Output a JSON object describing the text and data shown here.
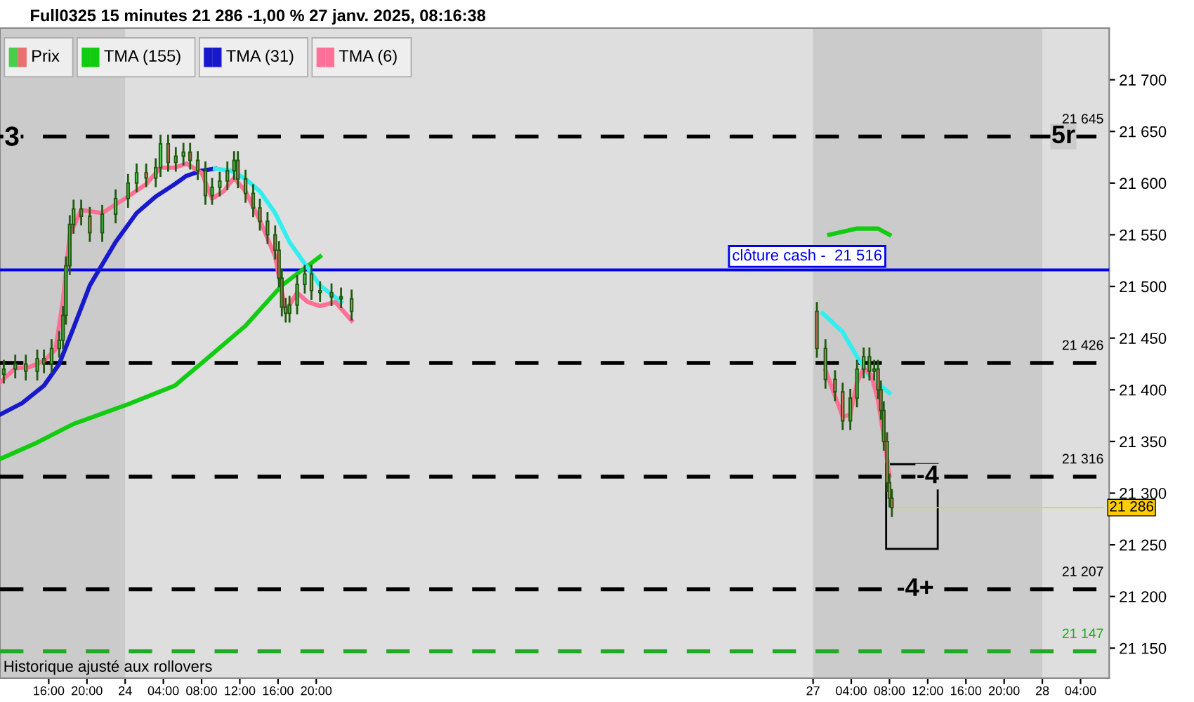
{
  "chart_data": {
    "type": "candlestick",
    "title": "Full0325 15 minutes 21 286 -1,00 % 27 janv. 2025, 08:16:38",
    "xlim": [
      "2025-01-23T10:54",
      "2025-01-28T07:00"
    ],
    "xticks": [
      {
        "value": "2025-01-23T16:00",
        "label": "16:00"
      },
      {
        "value": "2025-01-23T20:00",
        "label": "20:00"
      },
      {
        "value": "2025-01-24T00:00",
        "label": "24"
      },
      {
        "value": "2025-01-24T04:00",
        "label": "04:00"
      },
      {
        "value": "2025-01-24T08:00",
        "label": "08:00"
      },
      {
        "value": "2025-01-24T12:00",
        "label": "12:00"
      },
      {
        "value": "2025-01-24T16:00",
        "label": "16:00"
      },
      {
        "value": "2025-01-24T20:00",
        "label": "20:00"
      },
      {
        "value": "2025-01-27T00:00",
        "label": "27"
      },
      {
        "value": "2025-01-27T04:00",
        "label": "04:00"
      },
      {
        "value": "2025-01-27T08:00",
        "label": "08:00"
      },
      {
        "value": "2025-01-27T12:00",
        "label": "12:00"
      },
      {
        "value": "2025-01-27T16:00",
        "label": "16:00"
      },
      {
        "value": "2025-01-27T20:00",
        "label": "20:00"
      },
      {
        "value": "2025-01-28T00:00",
        "label": "28"
      },
      {
        "value": "2025-01-28T04:00",
        "label": "04:00"
      }
    ],
    "ylim": [
      21121,
      21750
    ],
    "yticks": [
      {
        "value": 21150,
        "label": "21 150"
      },
      {
        "value": 21200,
        "label": "21 200"
      },
      {
        "value": 21250,
        "label": "21 250"
      },
      {
        "value": 21300,
        "label": "21 300"
      },
      {
        "value": 21350,
        "label": "21 350"
      },
      {
        "value": 21400,
        "label": "21 400"
      },
      {
        "value": 21450,
        "label": "21 450"
      },
      {
        "value": 21500,
        "label": "21 500"
      },
      {
        "value": 21550,
        "label": "21 550"
      },
      {
        "value": 21600,
        "label": "21 600"
      },
      {
        "value": 21650,
        "label": "21 650"
      },
      {
        "value": 21700,
        "label": "21 700"
      }
    ],
    "legend": "top left",
    "series": [
      {
        "name": "Prix",
        "color": "#1e5a0f",
        "x": [
          "2025-01-23T11:18",
          "2025-01-23T12:30",
          "2025-01-23T13:36",
          "2025-01-23T14:48",
          "2025-01-23T15:30",
          "2025-01-23T16:18",
          "2025-01-23T17:06",
          "2025-01-23T17:30",
          "2025-01-23T17:48",
          "2025-01-23T18:12",
          "2025-01-23T18:36",
          "2025-01-23T19:24",
          "2025-01-23T20:18",
          "2025-01-23T21:36",
          "2025-01-23T23:00",
          "2025-01-24T00:18",
          "2025-01-24T01:12",
          "2025-01-24T02:12",
          "2025-01-24T03:12",
          "2025-01-24T03:42",
          "2025-01-24T04:30",
          "2025-01-24T05:18",
          "2025-01-24T06:06",
          "2025-01-24T06:48",
          "2025-01-24T07:36",
          "2025-01-24T08:24",
          "2025-01-24T09:06",
          "2025-01-24T09:54",
          "2025-01-24T10:42",
          "2025-01-24T11:24",
          "2025-01-24T11:48",
          "2025-01-24T12:36",
          "2025-01-24T13:24",
          "2025-01-24T14:06",
          "2025-01-24T14:54",
          "2025-01-24T15:42",
          "2025-01-24T16:06",
          "2025-01-24T16:24",
          "2025-01-24T16:48",
          "2025-01-24T17:12",
          "2025-01-24T18:00",
          "2025-01-24T18:48",
          "2025-01-24T19:30",
          "2025-01-24T20:24",
          "2025-01-24T21:36",
          "2025-01-24T22:36",
          "2025-01-24T23:42",
          "2025-01-27T00:24",
          "2025-01-27T01:18",
          "2025-01-27T02:18",
          "2025-01-27T03:06",
          "2025-01-27T03:54",
          "2025-01-27T04:36",
          "2025-01-27T05:18",
          "2025-01-27T05:54",
          "2025-01-27T06:24",
          "2025-01-27T06:48",
          "2025-01-27T07:06",
          "2025-01-27T07:24",
          "2025-01-27T07:45",
          "2025-01-27T08:00",
          "2025-01-27T08:15"
        ],
        "ohlc": [
          [
            21415,
            21428,
            21407,
            21420
          ],
          [
            21420,
            21433,
            21412,
            21425
          ],
          [
            21425,
            21433,
            21410,
            21418
          ],
          [
            21418,
            21438,
            21410,
            21430
          ],
          [
            21430,
            21438,
            21417,
            21425
          ],
          [
            21425,
            21448,
            21417,
            21440
          ],
          [
            21440,
            21456,
            21432,
            21448
          ],
          [
            21448,
            21480,
            21440,
            21472
          ],
          [
            21472,
            21528,
            21464,
            21520
          ],
          [
            21520,
            21568,
            21512,
            21560
          ],
          [
            21560,
            21583,
            21552,
            21575
          ],
          [
            21575,
            21583,
            21560,
            21568
          ],
          [
            21568,
            21576,
            21544,
            21552
          ],
          [
            21552,
            21578,
            21544,
            21570
          ],
          [
            21570,
            21593,
            21562,
            21585
          ],
          [
            21585,
            21608,
            21577,
            21600
          ],
          [
            21600,
            21618,
            21592,
            21610
          ],
          [
            21610,
            21618,
            21597,
            21605
          ],
          [
            21605,
            21623,
            21597,
            21615
          ],
          [
            21615,
            21646,
            21607,
            21638
          ],
          [
            21638,
            21646,
            21612,
            21620
          ],
          [
            21620,
            21634,
            21612,
            21626
          ],
          [
            21626,
            21638,
            21618,
            21630
          ],
          [
            21630,
            21638,
            21614,
            21622
          ],
          [
            21622,
            21630,
            21604,
            21612
          ],
          [
            21612,
            21620,
            21580,
            21588
          ],
          [
            21588,
            21604,
            21580,
            21596
          ],
          [
            21596,
            21610,
            21588,
            21602
          ],
          [
            21602,
            21620,
            21594,
            21612
          ],
          [
            21612,
            21630,
            21604,
            21622
          ],
          [
            21622,
            21630,
            21596,
            21604
          ],
          [
            21604,
            21612,
            21582,
            21590
          ],
          [
            21590,
            21598,
            21568,
            21576
          ],
          [
            21576,
            21584,
            21555,
            21563
          ],
          [
            21563,
            21571,
            21542,
            21550
          ],
          [
            21550,
            21558,
            21527,
            21535
          ],
          [
            21535,
            21543,
            21500,
            21508
          ],
          [
            21508,
            21516,
            21472,
            21480
          ],
          [
            21480,
            21488,
            21466,
            21474
          ],
          [
            21474,
            21490,
            21466,
            21482
          ],
          [
            21482,
            21510,
            21474,
            21502
          ],
          [
            21502,
            21520,
            21494,
            21512
          ],
          [
            21512,
            21520,
            21488,
            21496
          ],
          [
            21496,
            21504,
            21486,
            21494
          ],
          [
            21494,
            21502,
            21482,
            21490
          ],
          [
            21490,
            21498,
            21480,
            21488
          ],
          [
            21488,
            21496,
            21468,
            21476
          ],
          [
            21476,
            21484,
            21432,
            21440
          ],
          [
            21440,
            21448,
            21402,
            21410
          ],
          [
            21410,
            21418,
            21390,
            21398
          ],
          [
            21398,
            21406,
            21362,
            21370
          ],
          [
            21370,
            21400,
            21362,
            21392
          ],
          [
            21392,
            21428,
            21384,
            21420
          ],
          [
            21420,
            21440,
            21412,
            21432
          ],
          [
            21432,
            21440,
            21410,
            21418
          ],
          [
            21418,
            21428,
            21410,
            21420
          ],
          [
            21420,
            21428,
            21392,
            21400
          ],
          [
            21400,
            21408,
            21372,
            21380
          ],
          [
            21380,
            21388,
            21342,
            21350
          ],
          [
            21350,
            21358,
            21302,
            21310
          ],
          [
            21310,
            21318,
            21287,
            21295
          ],
          [
            21295,
            21303,
            21278,
            21286
          ]
        ],
        "colors": [
          "#4ccc4c",
          "#4ccc4c",
          "#e87070",
          "#4ccc4c",
          "#e87070",
          "#4ccc4c",
          "#4ccc4c",
          "#4ccc4c",
          "#4ccc4c",
          "#4ccc4c",
          "#4ccc4c",
          "#e87070",
          "#e87070",
          "#4ccc4c",
          "#4ccc4c",
          "#4ccc4c",
          "#4ccc4c",
          "#e87070",
          "#4ccc4c",
          "#4ccc4c",
          "#e87070",
          "#4ccc4c",
          "#4ccc4c",
          "#e87070",
          "#e87070",
          "#e87070",
          "#4ccc4c",
          "#4ccc4c",
          "#4ccc4c",
          "#4ccc4c",
          "#e87070",
          "#e87070",
          "#e87070",
          "#e87070",
          "#e87070",
          "#e87070",
          "#e87070",
          "#e87070",
          "#e87070",
          "#4ccc4c",
          "#4ccc4c",
          "#4ccc4c",
          "#e87070",
          "#e87070",
          "#e87070",
          "#e87070",
          "#e87070",
          "#e87070",
          "#e87070",
          "#e87070",
          "#e87070",
          "#4ccc4c",
          "#4ccc4c",
          "#4ccc4c",
          "#e87070",
          "#4ccc4c",
          "#e87070",
          "#e87070",
          "#e87070",
          "#e87070",
          "#e87070",
          "#e87070"
        ]
      },
      {
        "name": "TMA (155)",
        "type": "line",
        "color": "#11cc11",
        "x": [
          "2025-01-23T10:54",
          "2025-01-23T14:48",
          "2025-01-23T18:36",
          "2025-01-24T00:18",
          "2025-01-24T05:12",
          "2025-01-24T08:48",
          "2025-01-24T12:36",
          "2025-01-24T16:24",
          "2025-01-24T20:24",
          "2025-01-27T01:42",
          "2025-01-27T04:36",
          "2025-01-27T06:48",
          "2025-01-27T08:00"
        ],
        "values": [
          21333,
          21349,
          21367,
          21386,
          21404,
          21432,
          21462,
          21501,
          21529,
          21550,
          21556,
          21556,
          21550
        ]
      },
      {
        "name": "TMA (31)",
        "type": "line",
        "color": "#1818cc",
        "x": [
          "2025-01-23T10:54",
          "2025-01-23T13:12",
          "2025-01-23T15:30",
          "2025-01-23T17:06",
          "2025-01-23T18:36",
          "2025-01-23T20:18",
          "2025-01-23T23:00",
          "2025-01-24T01:12",
          "2025-01-24T03:12",
          "2025-01-24T05:12",
          "2025-01-24T06:24",
          "2025-01-24T08:00",
          "2025-01-24T09:24"
        ],
        "values": [
          21376,
          21387,
          21404,
          21425,
          21460,
          21501,
          21543,
          21571,
          21587,
          21599,
          21607,
          21612,
          21614
        ]
      },
      {
        "type": "line",
        "color": "#33eeee",
        "x": [
          "2025-01-24T09:24",
          "2025-01-24T11:06",
          "2025-01-24T12:36",
          "2025-01-24T14:06",
          "2025-01-24T15:42",
          "2025-01-24T17:12",
          "2025-01-24T18:48",
          "2025-01-24T20:24",
          "2025-01-24T22:36",
          "2025-01-27T01:00",
          "2025-01-27T03:06",
          "2025-01-27T04:36",
          "2025-01-27T06:06",
          "2025-01-27T08:00"
        ],
        "values": [
          21614,
          21612,
          21604,
          21592,
          21571,
          21543,
          21522,
          21501,
          21485,
          21474,
          21456,
          21432,
          21411,
          21397
        ]
      },
      {
        "name": "TMA (6)",
        "type": "line",
        "color": "#ff7096",
        "x": [
          "2025-01-23T10:54",
          "2025-01-23T12:30",
          "2025-01-23T14:00",
          "2025-01-23T15:30",
          "2025-01-23T16:42",
          "2025-01-23T17:30",
          "2025-01-23T18:12",
          "2025-01-23T19:24",
          "2025-01-23T21:36",
          "2025-01-24T00:18",
          "2025-01-24T02:12",
          "2025-01-24T03:42",
          "2025-01-24T05:12",
          "2025-01-24T06:24",
          "2025-01-24T08:00",
          "2025-01-24T09:06",
          "2025-01-24T10:18",
          "2025-01-24T11:24",
          "2025-01-24T12:36",
          "2025-01-24T14:06",
          "2025-01-24T15:42",
          "2025-01-24T16:48",
          "2025-01-24T18:00",
          "2025-01-24T19:06",
          "2025-01-24T20:24",
          "2025-01-24T22:00",
          "2025-01-24T23:42",
          "2025-01-27T01:18",
          "2025-01-27T03:06",
          "2025-01-27T03:54",
          "2025-01-27T04:36",
          "2025-01-27T05:18",
          "2025-01-27T06:06",
          "2025-01-27T06:48",
          "2025-01-27T07:24",
          "2025-01-27T08:00"
        ],
        "values": [
          21407,
          21421,
          21422,
          21428,
          21439,
          21487,
          21550,
          21574,
          21571,
          21587,
          21599,
          21615,
          21615,
          21619,
          21610,
          21585,
          21592,
          21605,
          21592,
          21564,
          21529,
          21476,
          21494,
          21485,
          21481,
          21485,
          21467,
          21419,
          21374,
          21376,
          21407,
          21421,
          21414,
          21390,
          21355,
          21317
        ]
      }
    ],
    "ref_lines": [
      {
        "axis": "y",
        "value": 21645,
        "label": "21 645",
        "color": "#000000",
        "line_style": "dashed"
      },
      {
        "axis": "y",
        "value": 21516,
        "label": "clôture cash -  21 516",
        "color": "#0000ee",
        "line_style": "solid"
      },
      {
        "axis": "y",
        "value": 21426,
        "label": "21 426",
        "color": "#000000",
        "line_style": "dashed"
      },
      {
        "axis": "y",
        "value": 21316,
        "label": "21 316",
        "color": "#000000",
        "line_style": "dashed"
      },
      {
        "axis": "y",
        "value": 21207,
        "label": "21 207",
        "color": "#000000",
        "line_style": "dashed"
      },
      {
        "axis": "y",
        "value": 21147,
        "label": "21 147",
        "color": "#22aa22",
        "line_style": "dashed"
      }
    ],
    "bands": [
      {
        "axis": "x",
        "from": "2025-01-24T00:00",
        "to": "2025-01-27T00:00",
        "color": "#dedede"
      },
      {
        "axis": "x",
        "from": "2025-01-28T00:00",
        "to": "2025-01-28T07:00",
        "color": "#dedede"
      }
    ],
    "annotations": [
      "3",
      {
        "text": "5r",
        "x": "2025-01-28T02:12",
        "y": 21645
      },
      {
        "text": "-4",
        "x": "2025-01-27T12:00",
        "y": 21316
      },
      {
        "text": "-4+",
        "x": "2025-01-27T10:42",
        "y": 21207
      },
      {
        "text": "21 286",
        "x": "2025-01-27T08:15",
        "y": 21286
      },
      "Historique ajusté aux rollovers"
    ]
  }
}
